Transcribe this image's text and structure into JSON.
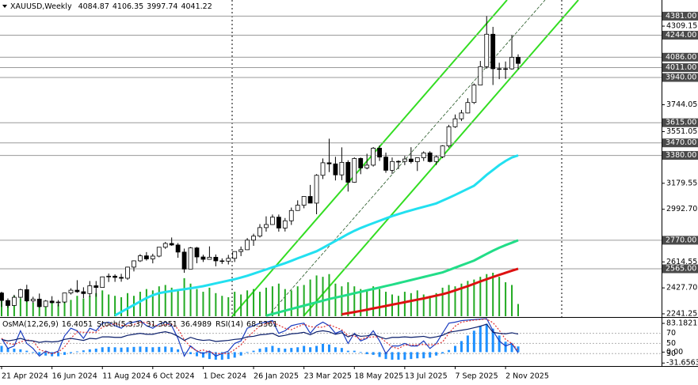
{
  "chart_data": [
    {
      "type": "candlestick",
      "title": "XAUUSD,Weekly",
      "categories": [
        "21 Apr 2024",
        null,
        null,
        null,
        null,
        null,
        null,
        null,
        "16 Jun 2024",
        null,
        null,
        null,
        null,
        null,
        null,
        null,
        "11 Aug 2024",
        null,
        null,
        null,
        null,
        null,
        null,
        null,
        "6 Oct 2024",
        null,
        null,
        null,
        null,
        null,
        null,
        null,
        "1 Dec 2024",
        null,
        null,
        null,
        null,
        null,
        null,
        null,
        "26 Jan 2025",
        null,
        null,
        null,
        null,
        null,
        null,
        null,
        "23 Mar 2025",
        null,
        null,
        null,
        null,
        null,
        null,
        null,
        "18 May 2025",
        null,
        null,
        null,
        null,
        null,
        null,
        null,
        "13 Jul 2025",
        null,
        null,
        null,
        null,
        null,
        null,
        null,
        "7 Sep 2025",
        null,
        null,
        null,
        null,
        null,
        null,
        null,
        "2 Nov 2025",
        null,
        null
      ],
      "open": [
        2391,
        2337,
        2301,
        2360,
        2415,
        2334,
        2347,
        2293,
        2333,
        2321,
        2326,
        2391,
        2411,
        2400,
        2387,
        2443,
        2431,
        2507,
        2512,
        2503,
        2497,
        2577,
        2622,
        2658,
        2636,
        2656,
        2720,
        2747,
        2736,
        2685,
        2563,
        2715,
        2650,
        2633,
        2648,
        2622,
        2620,
        2640,
        2689,
        2702,
        2771,
        2800,
        2861,
        2883,
        2936,
        2858,
        2910,
        2984,
        3022,
        3085,
        3037,
        3237,
        3327,
        3319,
        3240,
        3330,
        3187,
        3358,
        3290,
        3310,
        3432,
        3368,
        3273,
        3336,
        3337,
        3354,
        3335,
        3363,
        3398,
        3336,
        3370,
        3448,
        3586,
        3643,
        3685,
        3760,
        3886,
        4018,
        4251,
        4003,
        4003,
        4002,
        4084.87
      ],
      "high": [
        2400,
        2352,
        2378,
        2422,
        2450,
        2364,
        2387,
        2340,
        2368,
        2340,
        2392,
        2425,
        2483,
        2432,
        2477,
        2477,
        2509,
        2531,
        2525,
        2529,
        2580,
        2625,
        2670,
        2685,
        2673,
        2721,
        2758,
        2790,
        2750,
        2710,
        2721,
        2722,
        2666,
        2726,
        2668,
        2640,
        2665,
        2690,
        2725,
        2786,
        2817,
        2886,
        2942,
        2955,
        2955,
        2930,
        3005,
        3057,
        3087,
        3168,
        3245,
        3358,
        3500,
        3370,
        3438,
        3345,
        3366,
        3365,
        3392,
        3440,
        3452,
        3400,
        3365,
        3345,
        3376,
        3439,
        3363,
        3409,
        3410,
        3380,
        3453,
        3600,
        3674,
        3707,
        3791,
        3897,
        4059,
        4381,
        4304,
        4046,
        4055,
        4245,
        4106.35
      ],
      "low": [
        2291,
        2285,
        2298,
        2352,
        2325,
        2320,
        2286,
        2293,
        2317,
        2295,
        2318,
        2380,
        2392,
        2353,
        2363,
        2364,
        2431,
        2470,
        2471,
        2472,
        2485,
        2546,
        2614,
        2624,
        2604,
        2648,
        2708,
        2730,
        2644,
        2536,
        2563,
        2605,
        2614,
        2632,
        2583,
        2600,
        2596,
        2614,
        2656,
        2700,
        2730,
        2790,
        2832,
        2880,
        2832,
        2833,
        2880,
        2982,
        3000,
        3054,
        2957,
        3210,
        3260,
        3200,
        3202,
        3120,
        3183,
        3245,
        3280,
        3300,
        3340,
        3255,
        3247,
        3282,
        3310,
        3322,
        3268,
        3340,
        3330,
        3311,
        3360,
        3436,
        3578,
        3627,
        3682,
        3750,
        3885,
        4003,
        3886,
        3928,
        3930,
        3996,
        3997.74
      ],
      "close": [
        2337,
        2301,
        2360,
        2415,
        2334,
        2347,
        2293,
        2333,
        2321,
        2326,
        2391,
        2411,
        2400,
        2387,
        2443,
        2431,
        2507,
        2512,
        2503,
        2497,
        2577,
        2622,
        2658,
        2636,
        2656,
        2720,
        2747,
        2736,
        2685,
        2563,
        2715,
        2650,
        2633,
        2648,
        2622,
        2620,
        2640,
        2689,
        2702,
        2771,
        2800,
        2861,
        2883,
        2936,
        2858,
        2910,
        2984,
        3022,
        3085,
        3037,
        3237,
        3327,
        3319,
        3240,
        3330,
        3187,
        3358,
        3290,
        3310,
        3432,
        3368,
        3273,
        3336,
        3337,
        3354,
        3335,
        3363,
        3398,
        3336,
        3370,
        3448,
        3586,
        3643,
        3685,
        3760,
        3886,
        4018,
        4251,
        4003,
        4003,
        4002,
        4085,
        4041.22
      ],
      "bull_color": "#ffffff",
      "bear_color": "#000000",
      "ylim": [
        2224,
        4497
      ],
      "yticks": [
        4309.15,
        3744.05,
        3551.05,
        3179.55,
        {
          "value": 2992.7,
          "label": "2992.70"
        },
        2614.55,
        {
          "value": 2427.7,
          "label": "2427.70"
        },
        2241.25
      ],
      "levels": [
        {
          "value": 4381,
          "label": "4381.00"
        },
        {
          "value": 4244,
          "label": "4244.00"
        },
        {
          "value": 4086,
          "label": "4086.00"
        },
        {
          "value": 4011,
          "label": "4011.00"
        },
        {
          "value": 3940,
          "label": "3940.00"
        },
        {
          "value": 3615,
          "label": "3615.00"
        },
        {
          "value": 3470,
          "label": "3470.00"
        },
        {
          "value": 3380,
          "label": "3380.00"
        },
        {
          "value": 2770,
          "label": "2770.00"
        },
        {
          "value": 2565,
          "label": "2565.00"
        }
      ],
      "series": [
        {
          "color": "#22e0f0",
          "values": [
            null,
            null,
            null,
            null,
            null,
            null,
            null,
            null,
            null,
            null,
            null,
            null,
            null,
            null,
            null,
            null,
            null,
            null,
            2230,
            2255,
            2280,
            2305,
            2330,
            2355,
            2375,
            2390,
            2398,
            2405,
            2412,
            2418,
            2425,
            2432,
            2440,
            2450,
            2460,
            2470,
            2480,
            2490,
            2502,
            2515,
            2530,
            2545,
            2560,
            2575,
            2590,
            2605,
            2622,
            2640,
            2657,
            2674,
            2691,
            2715,
            2740,
            2765,
            2790,
            2815,
            2838,
            2858,
            2876,
            2893,
            2910,
            2927,
            2944,
            2958,
            2972,
            2985,
            2998,
            3010,
            3022,
            3035,
            3055,
            3075,
            3096,
            3118,
            3140,
            3162,
            3200,
            3240,
            3275,
            3310,
            3340,
            3365,
            3380
          ]
        },
        {
          "color": "#22dd88",
          "values": [
            null,
            null,
            null,
            null,
            null,
            null,
            null,
            null,
            null,
            null,
            null,
            null,
            null,
            null,
            null,
            null,
            null,
            null,
            null,
            null,
            null,
            null,
            null,
            null,
            null,
            null,
            null,
            null,
            null,
            null,
            null,
            null,
            null,
            null,
            null,
            null,
            null,
            null,
            null,
            null,
            null,
            null,
            2228,
            2240,
            2252,
            2264,
            2276,
            2288,
            2300,
            2312,
            2324,
            2336,
            2348,
            2358,
            2368,
            2378,
            2389,
            2399,
            2410,
            2420,
            2430,
            2441,
            2451,
            2462,
            2473,
            2484,
            2495,
            2506,
            2517,
            2528,
            2539,
            2556,
            2573,
            2590,
            2607,
            2624,
            2648,
            2672,
            2695,
            2716,
            2735,
            2752,
            2770
          ]
        },
        {
          "color": "#dd1111",
          "values": [
            null,
            null,
            null,
            null,
            null,
            null,
            null,
            null,
            null,
            null,
            null,
            null,
            null,
            null,
            null,
            null,
            null,
            null,
            null,
            null,
            null,
            null,
            null,
            null,
            null,
            null,
            null,
            null,
            null,
            null,
            null,
            null,
            null,
            null,
            null,
            null,
            null,
            null,
            null,
            null,
            null,
            null,
            null,
            null,
            null,
            null,
            null,
            null,
            null,
            null,
            null,
            null,
            null,
            null,
            2238,
            2246,
            2254,
            2262,
            2271,
            2280,
            2289,
            2298,
            2307,
            2316,
            2325,
            2334,
            2343,
            2352,
            2362,
            2372,
            2382,
            2395,
            2410,
            2425,
            2440,
            2457,
            2474,
            2490,
            2506,
            2521,
            2536,
            2551,
            2565
          ]
        }
      ],
      "volume": {
        "color": "#22aa22",
        "values": [
          28,
          22,
          30,
          26,
          32,
          20,
          24,
          18,
          22,
          18,
          28,
          24,
          30,
          26,
          30,
          34,
          38,
          32,
          30,
          28,
          34,
          30,
          36,
          40,
          38,
          44,
          46,
          42,
          40,
          56,
          48,
          40,
          36,
          42,
          34,
          30,
          28,
          36,
          32,
          38,
          40,
          36,
          42,
          44,
          48,
          40,
          38,
          44,
          46,
          54,
          60,
          58,
          62,
          48,
          44,
          50,
          44,
          40,
          38,
          44,
          40,
          36,
          32,
          30,
          36,
          34,
          38,
          32,
          30,
          34,
          42,
          46,
          44,
          48,
          52,
          54,
          58,
          62,
          64,
          58,
          50,
          46,
          18
        ]
      }
    },
    {
      "type": "oscillator",
      "ylim": [
        -38,
        97
      ],
      "yticks": [
        83.1821,
        {
          "value": 0,
          "label": "0.00"
        },
        -31.6563
      ],
      "y2lim": [
        7,
        99
      ],
      "y2ticks": [
        70,
        50,
        30
      ],
      "series": [
        {
          "name": "OsMA(12,26,9)",
          "type": "bar",
          "color": "#1e90ff",
          "values": [
            18,
            12,
            10,
            8,
            4,
            -2,
            -8,
            -10,
            -12,
            -12,
            -8,
            -3,
            2,
            5,
            8,
            10,
            14,
            15,
            14,
            13,
            14,
            15,
            16,
            15,
            14,
            15,
            16,
            14,
            8,
            -2,
            -6,
            -12,
            -16,
            -20,
            -22,
            -22,
            -20,
            -16,
            -10,
            -2,
            4,
            10,
            14,
            18,
            12,
            10,
            12,
            14,
            18,
            14,
            18,
            24,
            22,
            14,
            12,
            4,
            4,
            -2,
            -6,
            -8,
            -14,
            -20,
            -22,
            -22,
            -22,
            -20,
            -18,
            -18,
            -16,
            -10,
            -4,
            6,
            18,
            32,
            48,
            62,
            76,
            82,
            68,
            48,
            30,
            24,
            16.4051
          ]
        },
        {
          "name": "Stoch(5,3,3)",
          "type": "line",
          "axis": "y2",
          "color": "#1a3cc0",
          "values": [
            60,
            40,
            45,
            75,
            50,
            40,
            25,
            35,
            30,
            35,
            65,
            80,
            75,
            60,
            80,
            75,
            90,
            92,
            85,
            80,
            90,
            92,
            95,
            85,
            80,
            88,
            92,
            85,
            60,
            25,
            45,
            35,
            30,
            35,
            25,
            30,
            35,
            50,
            55,
            80,
            85,
            90,
            92,
            95,
            70,
            75,
            85,
            88,
            90,
            70,
            85,
            92,
            85,
            70,
            75,
            50,
            70,
            55,
            60,
            75,
            55,
            30,
            45,
            45,
            50,
            45,
            45,
            55,
            40,
            50,
            70,
            90,
            92,
            95,
            96,
            97,
            98,
            99,
            75,
            55,
            45,
            50,
            31.3051
          ]
        },
        {
          "type": "line",
          "axis": "y2",
          "color": "#e03030",
          "dashed": true,
          "values": [
            60,
            50,
            48,
            53,
            57,
            55,
            38,
            33,
            30,
            33,
            43,
            60,
            73,
            72,
            72,
            72,
            82,
            86,
            89,
            86,
            85,
            87,
            92,
            91,
            87,
            84,
            87,
            88,
            79,
            57,
            43,
            35,
            37,
            33,
            30,
            30,
            30,
            38,
            47,
            62,
            73,
            85,
            89,
            92,
            86,
            80,
            77,
            83,
            88,
            83,
            82,
            82,
            87,
            82,
            77,
            65,
            65,
            58,
            62,
            63,
            63,
            53,
            43,
            40,
            47,
            47,
            47,
            48,
            47,
            48,
            53,
            70,
            84,
            92,
            94,
            96,
            97,
            98,
            91,
            76,
            58,
            50,
            36.4989
          ]
        },
        {
          "name": "RSI(14)",
          "type": "line",
          "axis": "y2",
          "color": "#0b1f6b",
          "values": [
            58,
            55,
            57,
            60,
            56,
            55,
            52,
            54,
            53,
            54,
            58,
            60,
            58,
            56,
            60,
            59,
            63,
            63,
            62,
            62,
            66,
            68,
            70,
            68,
            68,
            71,
            73,
            70,
            64,
            56,
            62,
            58,
            56,
            57,
            54,
            55,
            56,
            58,
            59,
            63,
            64,
            67,
            68,
            70,
            64,
            66,
            69,
            70,
            72,
            67,
            73,
            75,
            73,
            68,
            71,
            63,
            68,
            64,
            65,
            68,
            63,
            59,
            62,
            62,
            63,
            62,
            63,
            64,
            61,
            63,
            66,
            72,
            74,
            76,
            78,
            81,
            84,
            88,
            72,
            70,
            69,
            71,
            68.5361
          ]
        }
      ]
    }
  ]
}
